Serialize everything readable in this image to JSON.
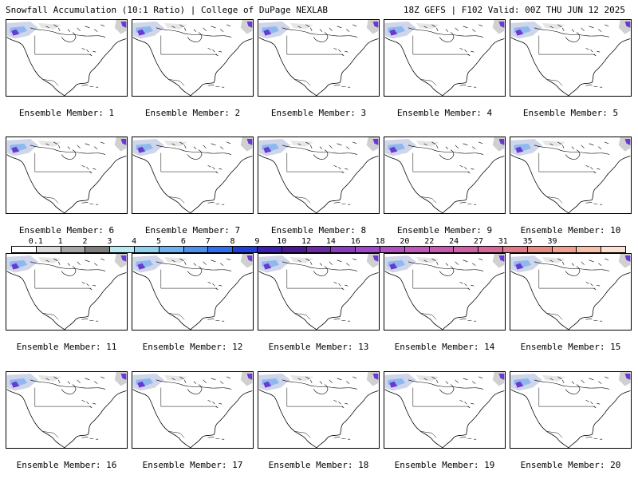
{
  "header": {
    "left": "Snowfall Accumulation (10:1 Ratio) | College of DuPage NEXLAB",
    "right": "18Z GEFS | F102 Valid: 00Z THU JUN 12 2025"
  },
  "panels": [
    {
      "label": "Ensemble Member: 1"
    },
    {
      "label": "Ensemble Member: 2"
    },
    {
      "label": "Ensemble Member: 3"
    },
    {
      "label": "Ensemble Member: 4"
    },
    {
      "label": "Ensemble Member: 5"
    },
    {
      "label": "Ensemble Member: 6"
    },
    {
      "label": "Ensemble Member: 7"
    },
    {
      "label": "Ensemble Member: 8"
    },
    {
      "label": "Ensemble Member: 9"
    },
    {
      "label": "Ensemble Member: 10"
    },
    {
      "label": "Ensemble Member: 11"
    },
    {
      "label": "Ensemble Member: 12"
    },
    {
      "label": "Ensemble Member: 13"
    },
    {
      "label": "Ensemble Member: 14"
    },
    {
      "label": "Ensemble Member: 15"
    },
    {
      "label": "Ensemble Member: 16"
    },
    {
      "label": "Ensemble Member: 17"
    },
    {
      "label": "Ensemble Member: 18"
    },
    {
      "label": "Ensemble Member: 19"
    },
    {
      "label": "Ensemble Member: 20"
    }
  ],
  "colorbar": {
    "ticks": [
      "0.1",
      "1",
      "2",
      "3",
      "4",
      "5",
      "6",
      "7",
      "8",
      "9",
      "10",
      "12",
      "14",
      "16",
      "18",
      "20",
      "22",
      "24",
      "27",
      "31",
      "35",
      "39"
    ],
    "colors": [
      "#ffffff",
      "#d9d9d9",
      "#a6a6a6",
      "#7f7f7f",
      "#b8e8f0",
      "#8fd0f0",
      "#6fb0f0",
      "#4f8ff0",
      "#2f6ff0",
      "#1f3fd8",
      "#3a1fb0",
      "#4a1890",
      "#6b2aa8",
      "#8a3cc0",
      "#a048c8",
      "#b050c0",
      "#c058b8",
      "#c85ab0",
      "#d060a8",
      "#d86898",
      "#e07888",
      "#e88a80",
      "#f0a090",
      "#f8c0a8",
      "#fce0d0"
    ]
  }
}
